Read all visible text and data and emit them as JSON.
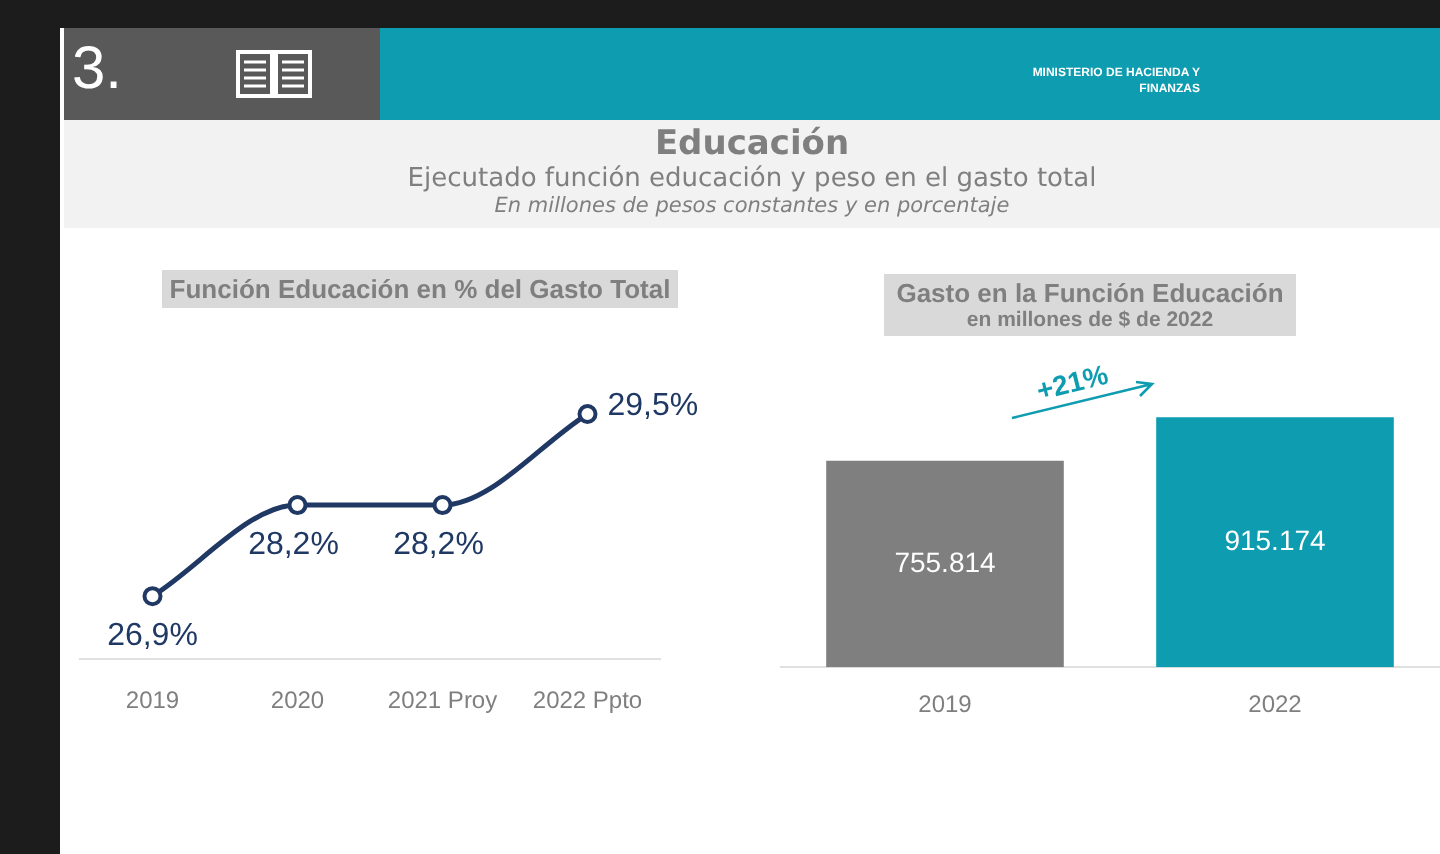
{
  "chart_data": [
    {
      "type": "other",
      "title": "Educación",
      "subtitle": "Ejecutado función educación y peso en el gasto total",
      "annotations": [
        "3.",
        "MINISTERIO DE HACIENDA Y FINANZAS",
        "En millones de pesos constantes y en porcentaje"
      ]
    },
    {
      "type": "line",
      "title": "Función Educación en % del Gasto Total",
      "categories": [
        "2019",
        "2020",
        "2021 Proy",
        "2022 Ppto"
      ],
      "series": [
        {
          "color": "#1f3864",
          "values": [
            26.9,
            28.2,
            28.2,
            29.5
          ],
          "value_labels": [
            "26,9%",
            "28,2%",
            "28,2%",
            "29,5%"
          ]
        }
      ],
      "marker": "circle",
      "grid": false,
      "legend": false
    },
    {
      "type": "bar",
      "title": "Gasto en la Función Educación",
      "subtitle": "en millones de $ de 2022",
      "categories": [
        "2019",
        "2022"
      ],
      "values": [
        755814,
        915174
      ],
      "colors": [
        "#7f7f7f",
        "#0e9cb0"
      ],
      "value_labels": [
        "755.814",
        "915.174"
      ],
      "annotations": [
        "+21%"
      ],
      "grid": false,
      "legend": false
    }
  ]
}
